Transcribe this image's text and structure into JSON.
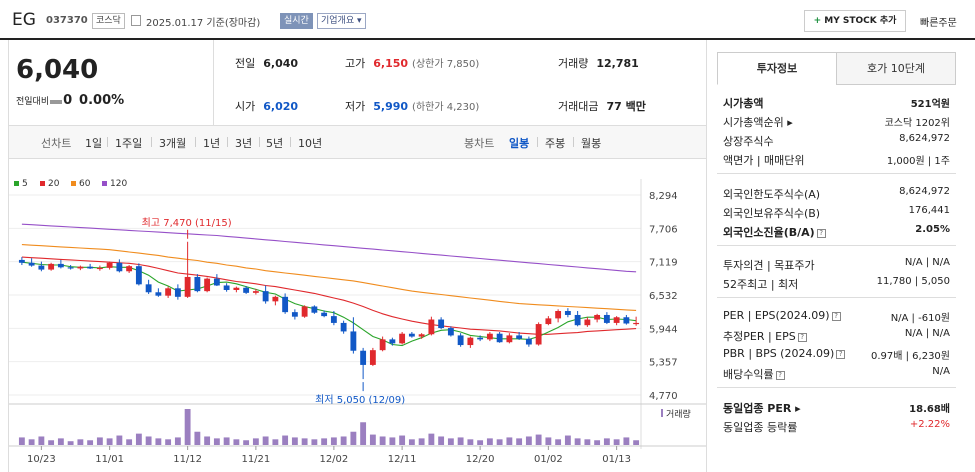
{
  "header": {
    "name": "EG",
    "code": "037370",
    "market": "코스닥",
    "date": "2025.01.17 기준(장마감)",
    "realtime": "실시간",
    "company_info": "기업개요 ▾",
    "mystock_plus": "+",
    "mystock": " MY STOCK 추가",
    "quick_order": "빠른주문"
  },
  "price": {
    "current": "6,040",
    "change_label": "전일대비",
    "change_value": "0",
    "change_rate": "0.00%",
    "prev_label": "전일",
    "prev": "6,040",
    "high_label": "고가",
    "high": "6,150",
    "upper": "(상한가 7,850)",
    "volume_label": "거래량",
    "volume": "12,781",
    "open_label": "시가",
    "open": "6,020",
    "low_label": "저가",
    "low": "5,990",
    "lower": "(하한가 4,230)",
    "amount_label": "거래대금",
    "amount": "77 백만"
  },
  "periods": {
    "line": "선차트",
    "items": [
      "1일",
      "1주일",
      "3개월",
      "1년",
      "3년",
      "5년",
      "10년"
    ],
    "candle": "봉차트",
    "candle_items": [
      "일봉",
      "주봉",
      "월봉"
    ],
    "active": "일봉"
  },
  "chart_data": {
    "type": "candlestick",
    "legend": [
      {
        "name": "5",
        "color": "#2aa52a"
      },
      {
        "name": "20",
        "color": "#e0292d"
      },
      {
        "name": "60",
        "color": "#f08c1e"
      },
      {
        "name": "120",
        "color": "#9650c8"
      }
    ],
    "y_ticks": [
      8294,
      7706,
      7119,
      6532,
      5944,
      5357,
      4770
    ],
    "ylim": [
      4770,
      8294
    ],
    "x_ticks": [
      "10/23",
      "11/01",
      "11/12",
      "11/21",
      "12/02",
      "12/11",
      "12/20",
      "01/02",
      "01/13"
    ],
    "high_label": "최고 7,470 (11/15)",
    "low_label": "최저 5,050 (12/09)",
    "volume_label": "거래량",
    "up_color": "#e0292d",
    "down_color": "#1158c6",
    "candles": [
      [
        7150,
        7200,
        7060,
        7100
      ],
      [
        7100,
        7180,
        7030,
        7050
      ],
      [
        7050,
        7120,
        6950,
        6980
      ],
      [
        6980,
        7100,
        6960,
        7080
      ],
      [
        7080,
        7150,
        7000,
        7020
      ],
      [
        7020,
        7060,
        6980,
        7000
      ],
      [
        7000,
        7050,
        6970,
        7030
      ],
      [
        7030,
        7080,
        6990,
        7000
      ],
      [
        7000,
        7050,
        6960,
        7010
      ],
      [
        7010,
        7120,
        6980,
        7100
      ],
      [
        7100,
        7160,
        6930,
        6950
      ],
      [
        6950,
        7060,
        6920,
        7040
      ],
      [
        7040,
        7090,
        6700,
        6720
      ],
      [
        6720,
        6800,
        6550,
        6580
      ],
      [
        6580,
        6650,
        6500,
        6520
      ],
      [
        6520,
        6680,
        6480,
        6650
      ],
      [
        6650,
        6720,
        6450,
        6500
      ],
      [
        6500,
        7470,
        6480,
        6850
      ],
      [
        6850,
        6900,
        6580,
        6600
      ],
      [
        6600,
        6840,
        6580,
        6820
      ],
      [
        6820,
        6900,
        6690,
        6700
      ],
      [
        6700,
        6740,
        6590,
        6620
      ],
      [
        6620,
        6680,
        6580,
        6660
      ],
      [
        6660,
        6690,
        6550,
        6570
      ],
      [
        6570,
        6640,
        6540,
        6600
      ],
      [
        6600,
        6700,
        6380,
        6420
      ],
      [
        6420,
        6520,
        6350,
        6500
      ],
      [
        6500,
        6560,
        6200,
        6230
      ],
      [
        6230,
        6280,
        6100,
        6150
      ],
      [
        6150,
        6350,
        6130,
        6330
      ],
      [
        6330,
        6350,
        6200,
        6220
      ],
      [
        6220,
        6260,
        6140,
        6160
      ],
      [
        6160,
        6250,
        6000,
        6040
      ],
      [
        6040,
        6080,
        5850,
        5890
      ],
      [
        5890,
        6140,
        5500,
        5550
      ],
      [
        5550,
        5600,
        5050,
        5300
      ],
      [
        5300,
        5600,
        5280,
        5560
      ],
      [
        5560,
        5800,
        5540,
        5750
      ],
      [
        5750,
        5780,
        5640,
        5680
      ],
      [
        5680,
        5880,
        5660,
        5850
      ],
      [
        5850,
        5880,
        5780,
        5800
      ],
      [
        5800,
        5860,
        5760,
        5840
      ],
      [
        5840,
        6150,
        5820,
        6100
      ],
      [
        6100,
        6140,
        5930,
        5950
      ],
      [
        5950,
        5980,
        5800,
        5820
      ],
      [
        5820,
        5860,
        5620,
        5650
      ],
      [
        5650,
        5800,
        5600,
        5780
      ],
      [
        5780,
        5820,
        5720,
        5750
      ],
      [
        5750,
        5880,
        5720,
        5850
      ],
      [
        5850,
        5880,
        5690,
        5700
      ],
      [
        5700,
        5860,
        5680,
        5820
      ],
      [
        5820,
        5880,
        5740,
        5760
      ],
      [
        5760,
        5800,
        5620,
        5660
      ],
      [
        5660,
        6050,
        5640,
        6020
      ],
      [
        6020,
        6160,
        6000,
        6120
      ],
      [
        6120,
        6280,
        6050,
        6250
      ],
      [
        6250,
        6300,
        6140,
        6180
      ],
      [
        6180,
        6250,
        5980,
        6000
      ],
      [
        6000,
        6140,
        5970,
        6100
      ],
      [
        6100,
        6200,
        6050,
        6180
      ],
      [
        6180,
        6230,
        6020,
        6040
      ],
      [
        6040,
        6160,
        6000,
        6140
      ],
      [
        6140,
        6180,
        6010,
        6030
      ],
      [
        6030,
        6150,
        5990,
        6040
      ]
    ],
    "ma5": [
      7110,
      7090,
      7070,
      7060,
      7060,
      7030,
      7020,
      7020,
      7010,
      7030,
      7020,
      7020,
      6960,
      6880,
      6760,
      6690,
      6600,
      6620,
      6640,
      6690,
      6750,
      6760,
      6730,
      6680,
      6630,
      6580,
      6550,
      6460,
      6380,
      6330,
      6290,
      6250,
      6220,
      6140,
      6040,
      5920,
      5800,
      5740,
      5660,
      5640,
      5720,
      5780,
      5860,
      5910,
      5920,
      5880,
      5820,
      5800,
      5780,
      5760,
      5760,
      5760,
      5750,
      5800,
      5880,
      5960,
      6060,
      6110,
      6140,
      6140,
      6100,
      6110,
      6100,
      6080
    ],
    "ma20": [
      7200,
      7190,
      7180,
      7170,
      7160,
      7150,
      7140,
      7130,
      7120,
      7110,
      7100,
      7090,
      7070,
      7040,
      7000,
      6960,
      6920,
      6900,
      6880,
      6860,
      6830,
      6800,
      6770,
      6750,
      6730,
      6700,
      6680,
      6650,
      6620,
      6590,
      6560,
      6520,
      6480,
      6440,
      6390,
      6330,
      6260,
      6200,
      6150,
      6110,
      6070,
      6040,
      6010,
      5990,
      5970,
      5950,
      5930,
      5920,
      5910,
      5900,
      5880,
      5860,
      5850,
      5840,
      5840,
      5850,
      5860,
      5870,
      5890,
      5900,
      5910,
      5920,
      5930,
      5940
    ],
    "ma60": [
      7420,
      7410,
      7400,
      7390,
      7380,
      7370,
      7360,
      7350,
      7340,
      7330,
      7310,
      7290,
      7270,
      7250,
      7230,
      7200,
      7180,
      7160,
      7140,
      7110,
      7090,
      7060,
      7040,
      7010,
      6990,
      6960,
      6940,
      6920,
      6900,
      6880,
      6860,
      6840,
      6820,
      6800,
      6780,
      6750,
      6720,
      6690,
      6660,
      6630,
      6600,
      6580,
      6560,
      6540,
      6520,
      6500,
      6480,
      6460,
      6440,
      6420,
      6400,
      6380,
      6370,
      6360,
      6350,
      6340,
      6330,
      6320,
      6310,
      6300,
      6290,
      6280,
      6270,
      6260
    ],
    "ma120": [
      7780,
      7770,
      7760,
      7750,
      7740,
      7730,
      7720,
      7710,
      7700,
      7690,
      7680,
      7670,
      7660,
      7650,
      7640,
      7630,
      7620,
      7610,
      7600,
      7590,
      7580,
      7565,
      7550,
      7535,
      7520,
      7505,
      7490,
      7475,
      7460,
      7445,
      7430,
      7415,
      7400,
      7385,
      7370,
      7355,
      7340,
      7325,
      7310,
      7295,
      7280,
      7265,
      7250,
      7235,
      7220,
      7205,
      7190,
      7175,
      7160,
      7145,
      7130,
      7115,
      7100,
      7085,
      7070,
      7055,
      7040,
      7025,
      7010,
      6995,
      6980,
      6965,
      6950,
      6940
    ],
    "volume": [
      8,
      6,
      9,
      5,
      7,
      4,
      6,
      5,
      8,
      7,
      10,
      6,
      12,
      9,
      7,
      6,
      8,
      38,
      14,
      9,
      7,
      8,
      6,
      5,
      7,
      9,
      6,
      10,
      8,
      7,
      6,
      7,
      8,
      9,
      14,
      24,
      11,
      9,
      8,
      10,
      6,
      7,
      12,
      9,
      7,
      8,
      6,
      5,
      7,
      6,
      8,
      7,
      9,
      11,
      8,
      6,
      10,
      7,
      6,
      5,
      7,
      6,
      8,
      5
    ]
  },
  "sidebar": {
    "tab_invest": "투자정보",
    "tab_orderbook": "호가 10단계",
    "rows": [
      {
        "k": "시가총액",
        "v": "521억원",
        "bold": true
      },
      {
        "k": "시가총액순위 ▸",
        "v": "코스닥 1202위"
      },
      {
        "k": "상장주식수",
        "v": "8,624,972"
      },
      {
        "k": "액면가 | 매매단위",
        "v": "1,000원 | 1주"
      },
      {
        "k": "외국인한도주식수(A)",
        "v": "8,624,972"
      },
      {
        "k": "외국인보유주식수(B)",
        "v": "176,441"
      },
      {
        "k": "외국인소진율(B/A)",
        "v": "2.05%",
        "bold": true,
        "q": "?"
      },
      {
        "k": "투자의견 | 목표주가",
        "v": "N/A | N/A"
      },
      {
        "k": "52주최고 | 최저",
        "v": "11,780 | 5,050"
      },
      {
        "k": "PER | EPS(2024.09)",
        "v": "N/A | -610원",
        "q": "?"
      },
      {
        "k": "추정PER | EPS",
        "v": "N/A | N/A",
        "q": "?"
      },
      {
        "k": "PBR | BPS (2024.09)",
        "v": "0.97배 | 6,230원",
        "q": "?"
      },
      {
        "k": "배당수익률",
        "v": "N/A",
        "q": "?"
      },
      {
        "k": "동일업종 PER ▸",
        "v": "18.68배",
        "bold": true
      },
      {
        "k": "동일업종 등락률",
        "v": "+2.22%",
        "red": true
      }
    ]
  }
}
